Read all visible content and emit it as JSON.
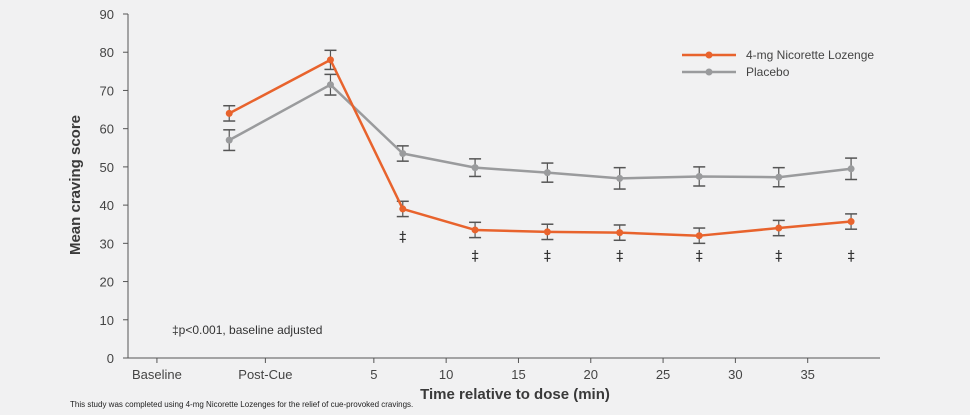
{
  "chart_data": {
    "type": "line",
    "categories": [
      "Baseline",
      "Post-Cue",
      "5",
      "10",
      "15",
      "20",
      "25",
      "30",
      "35"
    ],
    "x": [
      -5,
      2,
      7,
      12,
      17,
      22,
      27.5,
      33,
      38
    ],
    "xticks": [
      -10,
      -2.5,
      5,
      10,
      15,
      20,
      25,
      30,
      35
    ],
    "xlim": [
      -12,
      40
    ],
    "ylim": [
      0,
      90
    ],
    "yticks": [
      0,
      10,
      20,
      30,
      40,
      50,
      60,
      70,
      80,
      90
    ],
    "ylabel": "Mean craving score",
    "xlabel": "Time relative to dose (min)",
    "series": [
      {
        "name": "4-mg Nicorette Lozenge",
        "color": "#e8632d",
        "values": [
          64,
          78,
          39,
          33.5,
          33,
          32.8,
          32,
          34,
          35.7
        ],
        "errors": [
          2,
          2.5,
          2,
          2,
          2,
          2,
          2,
          2,
          2
        ]
      },
      {
        "name": "Placebo",
        "color": "#9a9b9d",
        "values": [
          57,
          71.5,
          53.5,
          49.8,
          48.5,
          47,
          47.5,
          47.3,
          49.5
        ],
        "errors": [
          2.7,
          2.7,
          2,
          2.3,
          2.5,
          2.8,
          2.5,
          2.5,
          2.8
        ]
      }
    ],
    "significance_marker": "‡",
    "significance_points": [
      {
        "x": 7,
        "y": 30.5
      },
      {
        "x": 12,
        "y": 25.5
      },
      {
        "x": 17,
        "y": 25.5
      },
      {
        "x": 22,
        "y": 25.5
      },
      {
        "x": 27.5,
        "y": 25.5
      },
      {
        "x": 33,
        "y": 25.5
      },
      {
        "x": 38,
        "y": 25.5
      }
    ],
    "annotation": "‡p<0.001, baseline adjusted",
    "legend_position": "top-right",
    "grid": false
  },
  "footnote": "This study was completed using 4-mg Nicorette Lozenges for the relief of cue-provoked cravings."
}
